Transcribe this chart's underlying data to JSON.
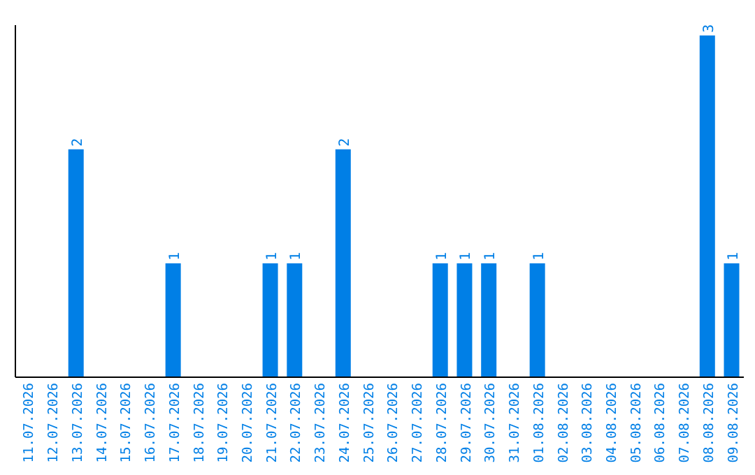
{
  "chart_data": {
    "type": "bar",
    "categories": [
      "11.07.2026",
      "12.07.2026",
      "13.07.2026",
      "14.07.2026",
      "15.07.2026",
      "16.07.2026",
      "17.07.2026",
      "18.07.2026",
      "19.07.2026",
      "20.07.2026",
      "21.07.2026",
      "22.07.2026",
      "23.07.2026",
      "24.07.2026",
      "25.07.2026",
      "26.07.2026",
      "27.07.2026",
      "28.07.2026",
      "29.07.2026",
      "30.07.2026",
      "31.07.2026",
      "01.08.2026",
      "02.08.2026",
      "03.08.2026",
      "04.08.2026",
      "05.08.2026",
      "06.08.2026",
      "07.08.2026",
      "08.08.2026",
      "09.08.2026"
    ],
    "values": [
      0,
      0,
      2,
      0,
      0,
      0,
      1,
      0,
      0,
      0,
      1,
      1,
      0,
      2,
      0,
      0,
      0,
      1,
      1,
      1,
      0,
      1,
      0,
      0,
      0,
      0,
      0,
      0,
      3,
      1
    ],
    "value_labels": [
      null,
      null,
      "2",
      null,
      null,
      null,
      "1",
      null,
      null,
      null,
      "1",
      "1",
      null,
      "2",
      null,
      null,
      null,
      "1",
      "1",
      "1",
      null,
      "1",
      null,
      null,
      null,
      null,
      null,
      null,
      "3",
      "1"
    ],
    "color": "#007fe6",
    "tick_labels": "x",
    "grid": false,
    "legend": false
  }
}
